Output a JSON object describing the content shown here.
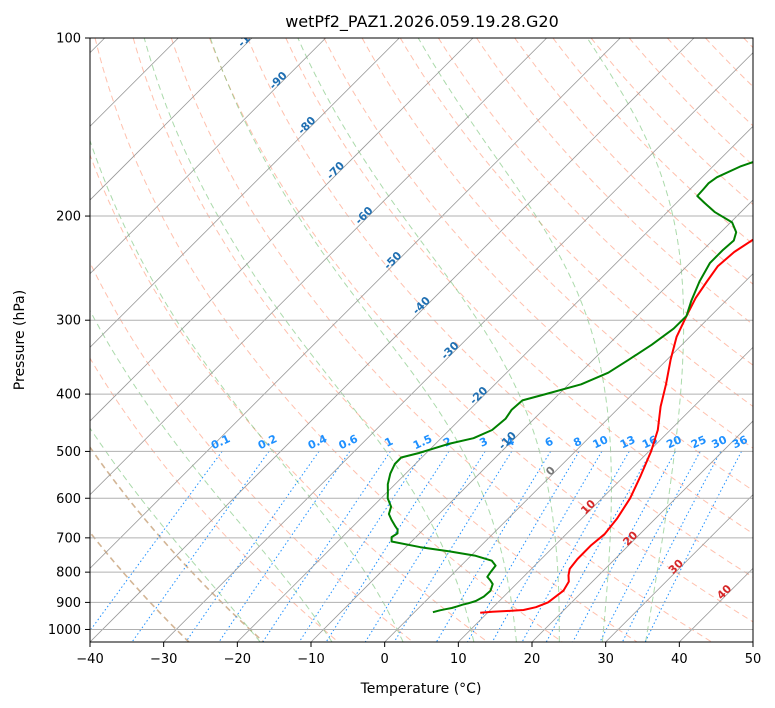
{
  "chart_data": {
    "type": "line",
    "title": "wetPf2_PAZ1.2026.059.19.28.G20",
    "xlabel": "Temperature (°C)",
    "ylabel": "Pressure (hPa)",
    "xlim": [
      -40,
      50
    ],
    "ylim": [
      1050,
      100
    ],
    "x_ticks": [
      -40,
      -30,
      -20,
      -10,
      0,
      10,
      20,
      30,
      40,
      50
    ],
    "y_ticks": [
      100,
      200,
      300,
      400,
      500,
      600,
      700,
      800,
      900,
      1000
    ],
    "grid": true,
    "series": [
      {
        "name": "Temperature",
        "color": "#ff0000",
        "points": [
          [
            9,
            937
          ],
          [
            10.5,
            933
          ],
          [
            13,
            930
          ],
          [
            14.5,
            927
          ],
          [
            15.8,
            917
          ],
          [
            16.8,
            900
          ],
          [
            17.3,
            860
          ],
          [
            16.8,
            830
          ],
          [
            15.9,
            810
          ],
          [
            15.2,
            790
          ],
          [
            14.9,
            760
          ],
          [
            14.9,
            720
          ],
          [
            15.2,
            690
          ],
          [
            14.8,
            650
          ],
          [
            13.8,
            600
          ],
          [
            12.2,
            550
          ],
          [
            10.3,
            500
          ],
          [
            8.3,
            460
          ],
          [
            5.5,
            420
          ],
          [
            3.2,
            385
          ],
          [
            0.5,
            350
          ],
          [
            -1.8,
            320
          ],
          [
            -3.3,
            295
          ],
          [
            -4.5,
            275
          ],
          [
            -5.2,
            258
          ],
          [
            -5.8,
            243
          ],
          [
            -5.5,
            230
          ],
          [
            -4.5,
            218
          ],
          [
            -3.3,
            210
          ],
          [
            -1.5,
            203
          ],
          [
            2,
            195
          ],
          [
            4.8,
            188
          ],
          [
            7.5,
            178
          ],
          [
            11.2,
            167
          ],
          [
            14.2,
            158
          ],
          [
            18.2,
            148
          ],
          [
            21.3,
            140
          ],
          [
            23.5,
            133
          ],
          [
            25.8,
            124
          ],
          [
            27.5,
            117
          ],
          [
            29.8,
            111
          ],
          [
            32.8,
            107
          ],
          [
            34.2,
            103
          ],
          [
            35.5,
            100
          ]
        ]
      },
      {
        "name": "Dewpoint",
        "color": "#008000",
        "points": [
          [
            2.5,
            935
          ],
          [
            3.2,
            928
          ],
          [
            3.8,
            924
          ],
          [
            4.5,
            920
          ],
          [
            5,
            914
          ],
          [
            5.5,
            908
          ],
          [
            6.1,
            903
          ],
          [
            6.8,
            895
          ],
          [
            7.3,
            880
          ],
          [
            7.4,
            860
          ],
          [
            6.8,
            838
          ],
          [
            5.9,
            825
          ],
          [
            5.1,
            815
          ],
          [
            4.9,
            800
          ],
          [
            4.7,
            780
          ],
          [
            3.5,
            765
          ],
          [
            0.5,
            750
          ],
          [
            -3.5,
            738
          ],
          [
            -8,
            726
          ],
          [
            -12.7,
            710
          ],
          [
            -13.3,
            698
          ],
          [
            -13,
            688
          ],
          [
            -13.5,
            678
          ],
          [
            -14.2,
            670
          ],
          [
            -15.7,
            652
          ],
          [
            -16.8,
            638
          ],
          [
            -17.5,
            620
          ],
          [
            -19.1,
            600
          ],
          [
            -19.9,
            586
          ],
          [
            -21,
            568
          ],
          [
            -22.1,
            545
          ],
          [
            -22.8,
            525
          ],
          [
            -22.8,
            512
          ],
          [
            -21,
            503
          ],
          [
            -18.1,
            485
          ],
          [
            -15.6,
            475
          ],
          [
            -14.2,
            460
          ],
          [
            -13.9,
            440
          ],
          [
            -14.3,
            425
          ],
          [
            -14.1,
            410
          ],
          [
            -11.8,
            400
          ],
          [
            -8.3,
            385
          ],
          [
            -6.2,
            368
          ],
          [
            -5.2,
            350
          ],
          [
            -4.1,
            330
          ],
          [
            -3.3,
            310
          ],
          [
            -3.3,
            295
          ],
          [
            -4.7,
            278
          ],
          [
            -6.2,
            258
          ],
          [
            -7.3,
            240
          ],
          [
            -7.3,
            228
          ],
          [
            -7.1,
            220
          ],
          [
            -7.9,
            213
          ],
          [
            -9.8,
            205
          ],
          [
            -13.5,
            197
          ],
          [
            -16.2,
            190
          ],
          [
            -18.1,
            185
          ],
          [
            -18.2,
            180
          ],
          [
            -18.3,
            176
          ],
          [
            -18,
            172
          ],
          [
            -16.3,
            165
          ],
          [
            -13.5,
            158
          ],
          [
            -11.3,
            150
          ],
          [
            -8.5,
            141
          ],
          [
            -4.5,
            128
          ],
          [
            -1,
            117
          ],
          [
            2.3,
            107
          ],
          [
            4.8,
            100
          ]
        ]
      }
    ],
    "dry_adiabats_label": "",
    "isotherm_labels": [
      "-100",
      "-90",
      "-80",
      "-70",
      "-60",
      "-50",
      "-40",
      "-30",
      "-20",
      "-10"
    ],
    "moist_labels": [
      "0",
      "10",
      "20",
      "30",
      "40"
    ],
    "mixing_ratio_labels": [
      "0.1",
      "0.2",
      "0.4",
      "0.6",
      "1",
      "1.5",
      "2",
      "3",
      "4",
      "6",
      "8",
      "10",
      "13",
      "16",
      "20",
      "25",
      "30",
      "36"
    ],
    "mixing_ratio_values": [
      0.1,
      0.2,
      0.4,
      0.6,
      1,
      1.5,
      2,
      3,
      4,
      6,
      8,
      10,
      13,
      16,
      20,
      25,
      30,
      36
    ],
    "isotherm_label_values": [
      -100,
      -90,
      -80,
      -70,
      -60,
      -50,
      -40,
      -30,
      -20,
      -10
    ],
    "moist_label_values": [
      0,
      10,
      20,
      30,
      40
    ],
    "colors": {
      "isotherm": "#999999",
      "dry_adiabat": "#ff8c69",
      "moist_adiabat": "#66bb66",
      "mixing_ratio": "#1e90ff",
      "special_isotherm": "#c8a27a",
      "isotherm_label": "#1f6fb2",
      "moist_label_zero": "#777777",
      "moist_label": "#d62728"
    }
  }
}
